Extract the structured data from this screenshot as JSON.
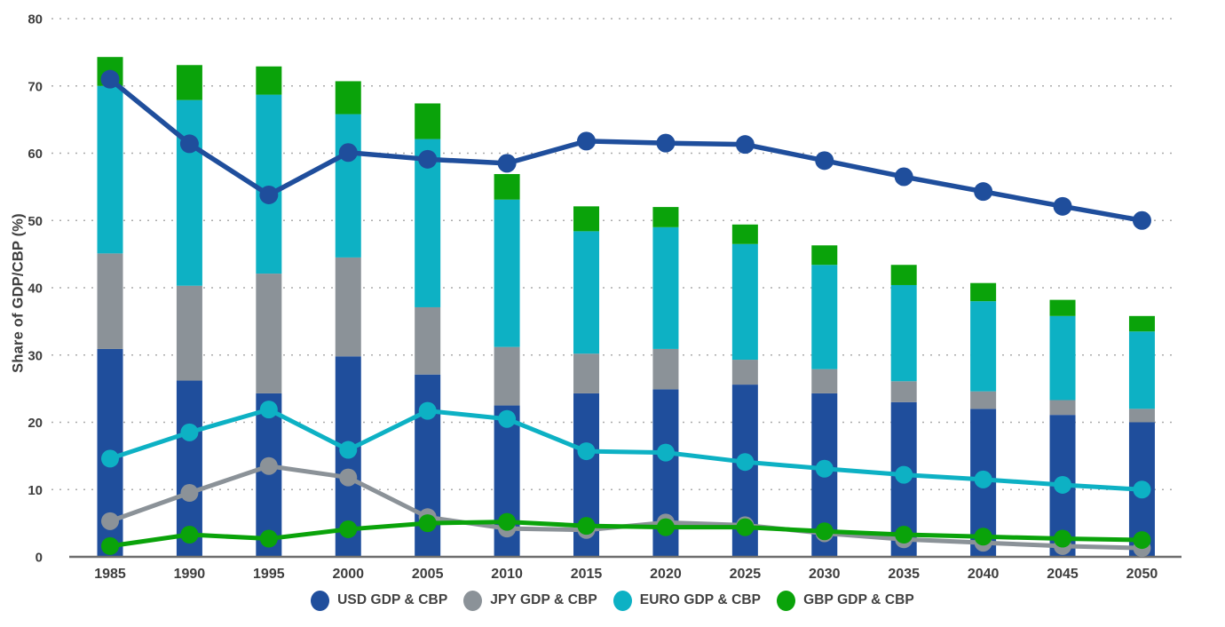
{
  "chart_data": {
    "type": "bar",
    "subtype": "stacked-bar-with-line-overlay",
    "title": "",
    "xlabel": "",
    "ylabel": "Share of GDP/CBP (%)",
    "ylim": [
      0,
      80
    ],
    "ytick_step": 10,
    "grid": "horizontal-dotted",
    "legend_position": "bottom-center",
    "categories": [
      "1985",
      "1990",
      "1995",
      "2000",
      "2005",
      "2010",
      "2015",
      "2020",
      "2025",
      "2030",
      "2035",
      "2040",
      "2045",
      "2050"
    ],
    "bar_series": [
      {
        "name": "USD GDP & CBP",
        "color": "#1F4E9C",
        "values": [
          30.9,
          26.2,
          24.3,
          29.8,
          27.1,
          22.5,
          24.3,
          24.9,
          25.6,
          24.3,
          23.0,
          22.0,
          21.1,
          20.0
        ]
      },
      {
        "name": "JPY GDP & CBP",
        "color": "#8B9298",
        "values": [
          14.2,
          14.1,
          17.8,
          14.7,
          10.0,
          8.7,
          5.9,
          6.0,
          3.7,
          3.6,
          3.1,
          2.6,
          2.2,
          2.0
        ]
      },
      {
        "name": "EURO GDP & CBP",
        "color": "#0DB1C4",
        "values": [
          24.9,
          27.6,
          26.6,
          21.3,
          25.0,
          21.9,
          18.2,
          18.1,
          17.2,
          15.5,
          14.3,
          13.4,
          12.5,
          11.5
        ]
      },
      {
        "name": "GBP GDP & CBP",
        "color": "#0AA30A",
        "values": [
          4.3,
          5.2,
          4.2,
          4.9,
          5.3,
          3.8,
          3.7,
          3.0,
          2.9,
          2.9,
          3.0,
          2.7,
          2.4,
          2.3
        ]
      }
    ],
    "line_series": [
      {
        "name": "JPY GDP & CBP",
        "color": "#8B9298",
        "values": [
          5.3,
          9.5,
          13.5,
          11.8,
          5.9,
          4.2,
          4.0,
          5.1,
          4.7,
          3.5,
          2.6,
          2.1,
          1.6,
          1.3
        ]
      },
      {
        "name": "GBP GDP & CBP",
        "color": "#0AA30A",
        "values": [
          1.6,
          3.3,
          2.7,
          4.1,
          5.0,
          5.2,
          4.6,
          4.4,
          4.4,
          3.8,
          3.3,
          3.0,
          2.7,
          2.5
        ]
      },
      {
        "name": "EURO GDP & CBP",
        "color": "#0DB1C4",
        "values": [
          14.6,
          18.5,
          21.9,
          15.9,
          21.7,
          20.5,
          15.7,
          15.5,
          14.1,
          13.1,
          12.2,
          11.5,
          10.7,
          10.0
        ]
      },
      {
        "name": "USD GDP & CBP",
        "color": "#1F4E9C",
        "values": [
          71.0,
          61.4,
          53.8,
          60.1,
          59.1,
          58.5,
          61.8,
          61.5,
          61.3,
          58.9,
          56.5,
          54.3,
          52.1,
          50.0
        ]
      }
    ],
    "legend": [
      {
        "label": "USD GDP & CBP",
        "color": "#1F4E9C"
      },
      {
        "label": "JPY GDP & CBP",
        "color": "#8B9298"
      },
      {
        "label": "EURO GDP & CBP",
        "color": "#0DB1C4"
      },
      {
        "label": "GBP GDP & CBP",
        "color": "#0AA30A"
      }
    ],
    "colors": {
      "axis_line": "#6E6E6E",
      "grid_dots": "#ABABAB",
      "tick_text": "#3E3E3E",
      "background": "#FFFFFF"
    }
  }
}
